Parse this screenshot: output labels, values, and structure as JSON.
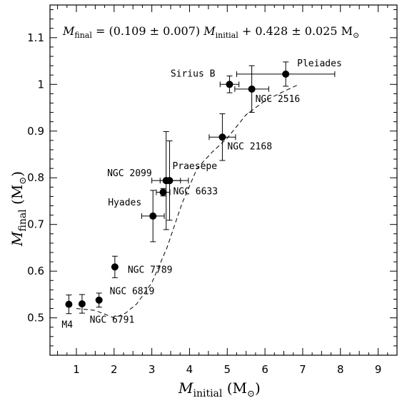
{
  "chart_data": {
    "type": "scatter",
    "title": "",
    "equation": {
      "lhs": "M",
      "lhs_sub": "final",
      "slope": "(0.109 ± 0.007)",
      "mid": "M",
      "mid_sub": "initial",
      "intercept": "+ 0.428 ± 0.025 M",
      "unit_sub": "⊙"
    },
    "xlabel": {
      "main": "M",
      "sub": "initial",
      "unit": "(M",
      "unit_sub": "⊙",
      "close": ")"
    },
    "ylabel": {
      "main": "M",
      "sub": "final",
      "unit": "(M",
      "unit_sub": "⊙",
      "close": ")"
    },
    "xlim": [
      0.3,
      9.5
    ],
    "ylim": [
      0.42,
      1.17
    ],
    "xticks": [
      1,
      2,
      3,
      4,
      5,
      6,
      7,
      8,
      9
    ],
    "yticks": [
      0.5,
      0.6,
      0.7,
      0.8,
      0.9,
      1,
      1.1
    ],
    "ytick_labels": [
      "0.5",
      "0.6",
      "0.7",
      "0.8",
      "0.9",
      "1",
      "1.1"
    ],
    "grid": false,
    "points": [
      {
        "label": "M4",
        "x": 0.8,
        "y": 0.529,
        "xerr": [
          0.0,
          0.0
        ],
        "yerr": [
          0.02,
          0.02
        ],
        "lpos": "M4"
      },
      {
        "label": "",
        "x": 1.15,
        "y": 0.53,
        "xerr": [
          0.0,
          0.0
        ],
        "yerr": [
          0.02,
          0.02
        ],
        "lpos": ""
      },
      {
        "label": "NGC 6819",
        "x": 1.6,
        "y": 0.538,
        "xerr": [
          0.0,
          0.0
        ],
        "yerr": [
          0.015,
          0.015
        ],
        "lpos": "NGC 6819"
      },
      {
        "label": "NGC 6791",
        "x": 1.6,
        "y": 0.538,
        "xerr": [
          0.0,
          0.0
        ],
        "yerr": [
          0.0,
          0.0
        ],
        "lpos": "NGC 6791"
      },
      {
        "label": "NGC 7789",
        "x": 2.02,
        "y": 0.609,
        "xerr": [
          0.0,
          0.0
        ],
        "yerr": [
          0.023,
          0.023
        ],
        "lpos": "NGC 7789"
      },
      {
        "label": "Hyades",
        "x": 3.03,
        "y": 0.718,
        "xerr": [
          0.3,
          0.3
        ],
        "yerr": [
          0.055,
          0.055
        ],
        "lpos": "Hyades"
      },
      {
        "label": "NGC 6633",
        "x": 3.3,
        "y": 0.769,
        "xerr": [
          0.18,
          0.18
        ],
        "yerr": [
          0.008,
          0.008
        ],
        "lpos": "NGC 6633"
      },
      {
        "label": "NGC 2099",
        "x": 3.38,
        "y": 0.794,
        "xerr": [
          0.38,
          0.38
        ],
        "yerr": [
          0.105,
          0.105
        ],
        "lpos": "NGC 2099"
      },
      {
        "label": "Praesepe",
        "x": 3.47,
        "y": 0.794,
        "xerr": [
          0.25,
          0.5
        ],
        "yerr": [
          0.085,
          0.085
        ],
        "lpos": "Praesepe"
      },
      {
        "label": "NGC 2168",
        "x": 4.87,
        "y": 0.887,
        "xerr": [
          0.35,
          0.35
        ],
        "yerr": [
          0.05,
          0.05
        ],
        "lpos": "NGC 2168"
      },
      {
        "label": "Sirius B",
        "x": 5.06,
        "y": 1.0,
        "xerr": [
          0.25,
          0.25
        ],
        "yerr": [
          0.018,
          0.018
        ],
        "lpos": "Sirius B"
      },
      {
        "label": "NGC 2516",
        "x": 5.65,
        "y": 0.99,
        "xerr": [
          0.45,
          0.45
        ],
        "yerr": [
          0.05,
          0.05
        ],
        "lpos": "NGC 2516"
      },
      {
        "label": "Pleiades",
        "x": 6.55,
        "y": 1.022,
        "xerr": [
          1.3,
          1.3
        ],
        "yerr": [
          0.026,
          0.026
        ],
        "lpos": "Pleiades"
      }
    ],
    "curve": {
      "style": "dashed",
      "x": [
        1.0,
        1.5,
        2.0,
        2.3,
        2.6,
        3.0,
        3.4,
        3.8,
        4.2,
        4.6,
        5.0,
        5.5,
        6.0,
        6.5,
        6.9
      ],
      "y": [
        0.52,
        0.516,
        0.5,
        0.51,
        0.53,
        0.575,
        0.65,
        0.745,
        0.82,
        0.855,
        0.885,
        0.935,
        0.965,
        0.985,
        1.0
      ]
    }
  }
}
